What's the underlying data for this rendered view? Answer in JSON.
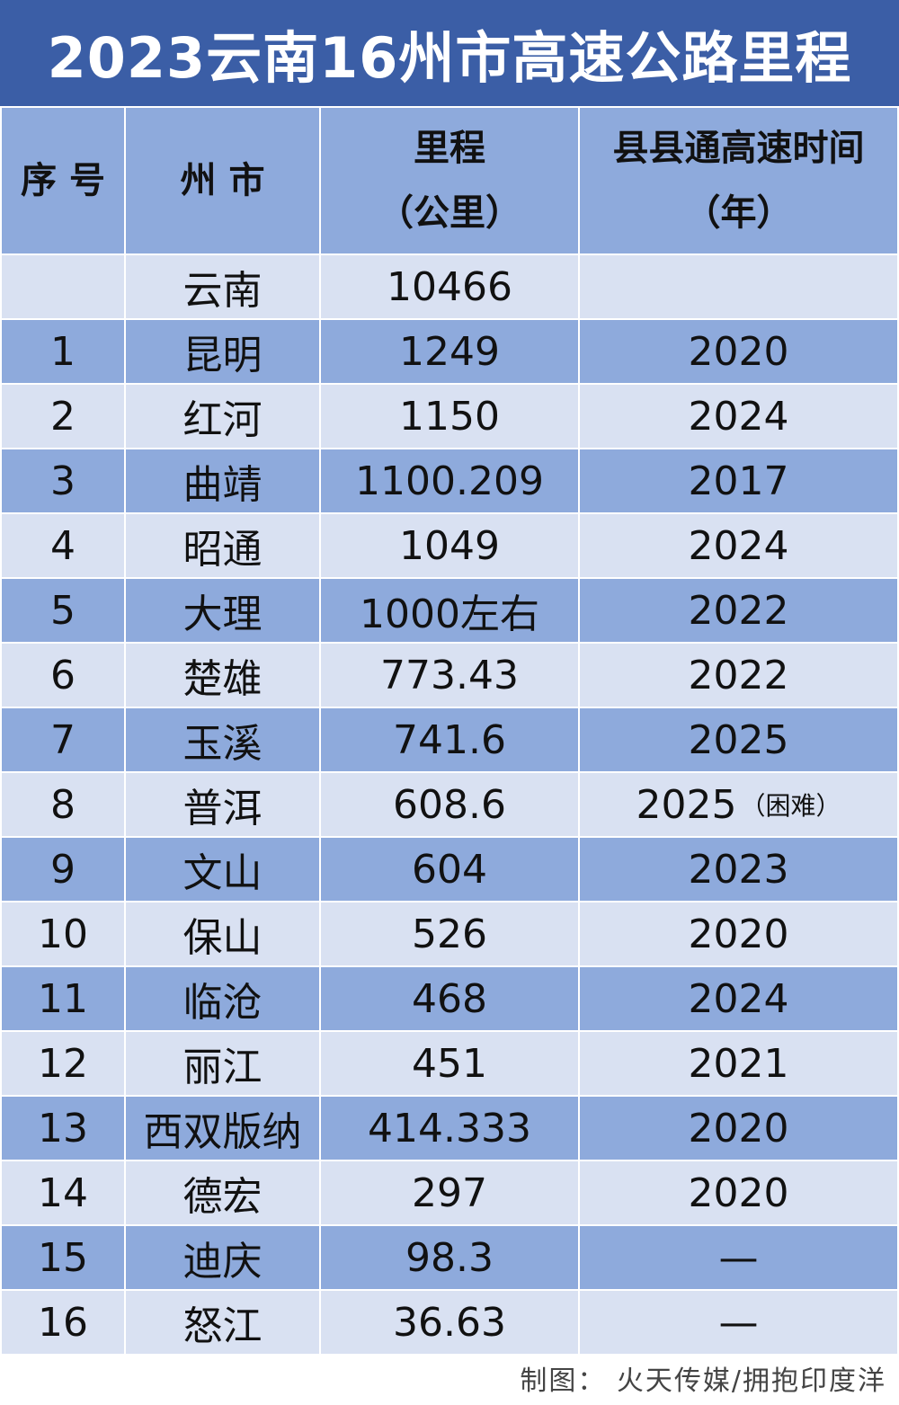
{
  "title": "2023云南16州市高速公路里程",
  "headers": {
    "index": "序 号",
    "city": "州 市",
    "mileage_line1": "里程",
    "mileage_line2": "（公里）",
    "year_line1": "县县通高速时间",
    "year_line2": "（年）"
  },
  "rows": [
    {
      "index": "",
      "city": "云南",
      "mileage": "10466",
      "year": "",
      "note": ""
    },
    {
      "index": "1",
      "city": "昆明",
      "mileage": "1249",
      "year": "2020",
      "note": ""
    },
    {
      "index": "2",
      "city": "红河",
      "mileage": "1150",
      "year": "2024",
      "note": ""
    },
    {
      "index": "3",
      "city": "曲靖",
      "mileage": "1100.209",
      "year": "2017",
      "note": ""
    },
    {
      "index": "4",
      "city": "昭通",
      "mileage": "1049",
      "year": "2024",
      "note": ""
    },
    {
      "index": "5",
      "city": "大理",
      "mileage": "1000左右",
      "year": "2022",
      "note": ""
    },
    {
      "index": "6",
      "city": "楚雄",
      "mileage": "773.43",
      "year": "2022",
      "note": ""
    },
    {
      "index": "7",
      "city": "玉溪",
      "mileage": "741.6",
      "year": "2025",
      "note": ""
    },
    {
      "index": "8",
      "city": "普洱",
      "mileage": "608.6",
      "year": "2025",
      "note": "（困难）"
    },
    {
      "index": "9",
      "city": "文山",
      "mileage": "604",
      "year": "2023",
      "note": ""
    },
    {
      "index": "10",
      "city": "保山",
      "mileage": "526",
      "year": "2020",
      "note": ""
    },
    {
      "index": "11",
      "city": "临沧",
      "mileage": "468",
      "year": "2024",
      "note": ""
    },
    {
      "index": "12",
      "city": "丽江",
      "mileage": "451",
      "year": "2021",
      "note": ""
    },
    {
      "index": "13",
      "city": "西双版纳",
      "mileage": "414.333",
      "year": "2020",
      "note": ""
    },
    {
      "index": "14",
      "city": "德宏",
      "mileage": "297",
      "year": "2020",
      "note": ""
    },
    {
      "index": "15",
      "city": "迪庆",
      "mileage": "98.3",
      "year": "—",
      "note": ""
    },
    {
      "index": "16",
      "city": "怒江",
      "mileage": "36.63",
      "year": "—",
      "note": ""
    }
  ],
  "footer": "制图： 火天传媒/拥抱印度洋",
  "colors": {
    "title_bg": "#3b5ea6",
    "header_bg": "#8eaadc",
    "row_dark": "#8eaadc",
    "row_light": "#d9e1f2"
  }
}
